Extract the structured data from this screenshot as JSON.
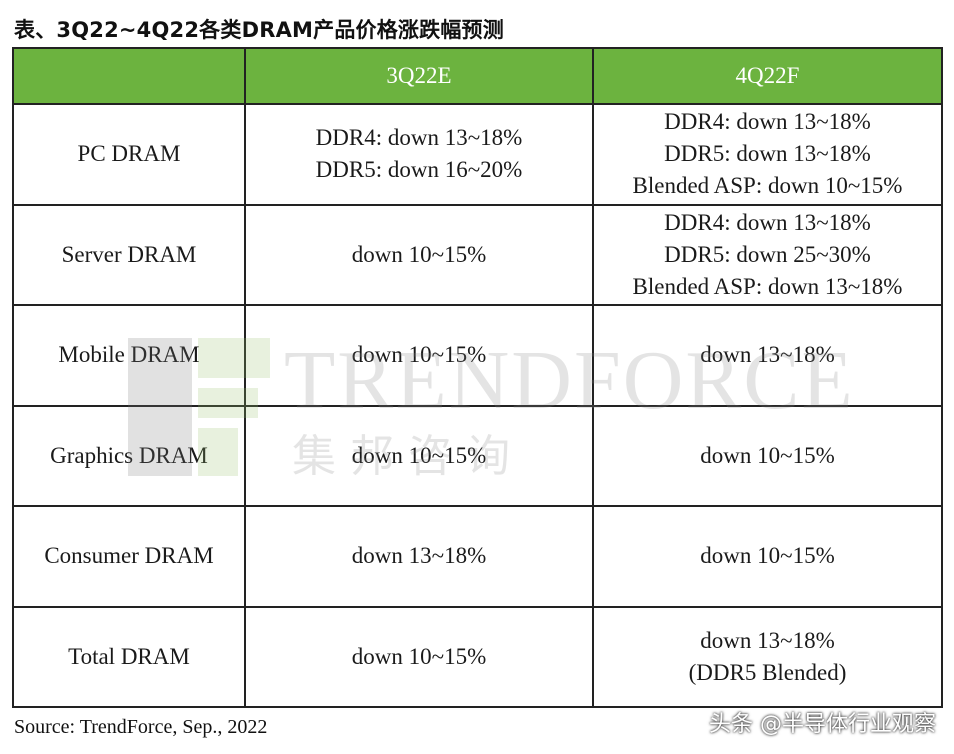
{
  "title": "表、3Q22~4Q22各类DRAM产品价格涨跌幅预测",
  "table": {
    "headers": [
      "",
      "3Q22E",
      "4Q22F"
    ],
    "header_color": "#6cb33f",
    "rows": [
      {
        "product": "PC DRAM",
        "q3": [
          "DDR4: down 13~18%",
          "DDR5: down 16~20%"
        ],
        "q4": [
          "DDR4: down 13~18%",
          "DDR5: down 13~18%",
          "Blended ASP: down 10~15%"
        ]
      },
      {
        "product": "Server DRAM",
        "q3": [
          "down 10~15%"
        ],
        "q4": [
          "DDR4: down 13~18%",
          "DDR5: down 25~30%",
          "Blended ASP: down 13~18%"
        ]
      },
      {
        "product": "Mobile DRAM",
        "q3": [
          "down  10~15%"
        ],
        "q4": [
          "down 13~18%"
        ]
      },
      {
        "product": "Graphics DRAM",
        "q3": [
          "down 10~15%"
        ],
        "q4": [
          "down 10~15%"
        ]
      },
      {
        "product": "Consumer DRAM",
        "q3": [
          "down 13~18%"
        ],
        "q4": [
          "down 10~15%"
        ]
      },
      {
        "product": "Total DRAM",
        "q3": [
          "down  10~15%"
        ],
        "q4": [
          "down 13~18%",
          "(DDR5 Blended)"
        ]
      }
    ]
  },
  "source": "Source: TrendForce, Sep., 2022",
  "watermark": {
    "name": "TRENDFORCE",
    "chinese": "集邦咨询"
  },
  "credit": "头条 @半导体行业观察"
}
